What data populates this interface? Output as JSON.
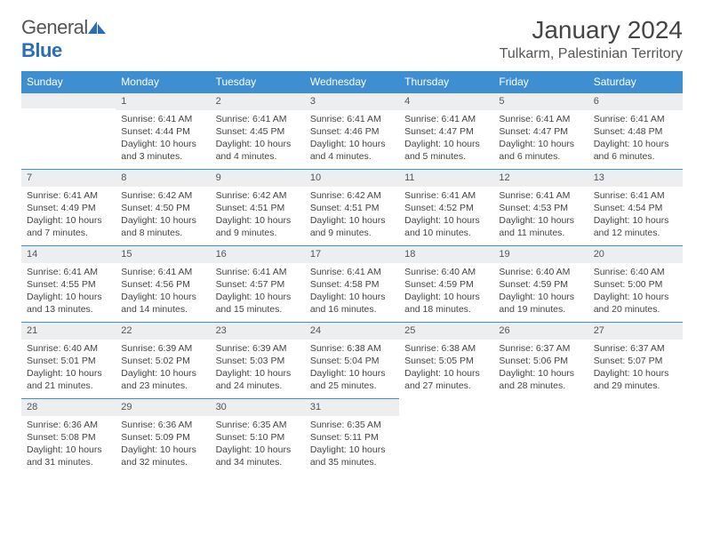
{
  "brand": {
    "part1": "General",
    "part2": "Blue"
  },
  "title": "January 2024",
  "location": "Tulkarm, Palestinian Territory",
  "colors": {
    "header_bg": "#3d8fd1",
    "header_text": "#ffffff",
    "daynum_bg": "#eceeef",
    "border": "#3d8fd1",
    "text": "#444444",
    "brand_blue": "#2a6db8"
  },
  "weekdays": [
    "Sunday",
    "Monday",
    "Tuesday",
    "Wednesday",
    "Thursday",
    "Friday",
    "Saturday"
  ],
  "start_offset": 1,
  "days": [
    {
      "n": "1",
      "sunrise": "6:41 AM",
      "sunset": "4:44 PM",
      "daylight": "10 hours and 3 minutes."
    },
    {
      "n": "2",
      "sunrise": "6:41 AM",
      "sunset": "4:45 PM",
      "daylight": "10 hours and 4 minutes."
    },
    {
      "n": "3",
      "sunrise": "6:41 AM",
      "sunset": "4:46 PM",
      "daylight": "10 hours and 4 minutes."
    },
    {
      "n": "4",
      "sunrise": "6:41 AM",
      "sunset": "4:47 PM",
      "daylight": "10 hours and 5 minutes."
    },
    {
      "n": "5",
      "sunrise": "6:41 AM",
      "sunset": "4:47 PM",
      "daylight": "10 hours and 6 minutes."
    },
    {
      "n": "6",
      "sunrise": "6:41 AM",
      "sunset": "4:48 PM",
      "daylight": "10 hours and 6 minutes."
    },
    {
      "n": "7",
      "sunrise": "6:41 AM",
      "sunset": "4:49 PM",
      "daylight": "10 hours and 7 minutes."
    },
    {
      "n": "8",
      "sunrise": "6:42 AM",
      "sunset": "4:50 PM",
      "daylight": "10 hours and 8 minutes."
    },
    {
      "n": "9",
      "sunrise": "6:42 AM",
      "sunset": "4:51 PM",
      "daylight": "10 hours and 9 minutes."
    },
    {
      "n": "10",
      "sunrise": "6:42 AM",
      "sunset": "4:51 PM",
      "daylight": "10 hours and 9 minutes."
    },
    {
      "n": "11",
      "sunrise": "6:41 AM",
      "sunset": "4:52 PM",
      "daylight": "10 hours and 10 minutes."
    },
    {
      "n": "12",
      "sunrise": "6:41 AM",
      "sunset": "4:53 PM",
      "daylight": "10 hours and 11 minutes."
    },
    {
      "n": "13",
      "sunrise": "6:41 AM",
      "sunset": "4:54 PM",
      "daylight": "10 hours and 12 minutes."
    },
    {
      "n": "14",
      "sunrise": "6:41 AM",
      "sunset": "4:55 PM",
      "daylight": "10 hours and 13 minutes."
    },
    {
      "n": "15",
      "sunrise": "6:41 AM",
      "sunset": "4:56 PM",
      "daylight": "10 hours and 14 minutes."
    },
    {
      "n": "16",
      "sunrise": "6:41 AM",
      "sunset": "4:57 PM",
      "daylight": "10 hours and 15 minutes."
    },
    {
      "n": "17",
      "sunrise": "6:41 AM",
      "sunset": "4:58 PM",
      "daylight": "10 hours and 16 minutes."
    },
    {
      "n": "18",
      "sunrise": "6:40 AM",
      "sunset": "4:59 PM",
      "daylight": "10 hours and 18 minutes."
    },
    {
      "n": "19",
      "sunrise": "6:40 AM",
      "sunset": "4:59 PM",
      "daylight": "10 hours and 19 minutes."
    },
    {
      "n": "20",
      "sunrise": "6:40 AM",
      "sunset": "5:00 PM",
      "daylight": "10 hours and 20 minutes."
    },
    {
      "n": "21",
      "sunrise": "6:40 AM",
      "sunset": "5:01 PM",
      "daylight": "10 hours and 21 minutes."
    },
    {
      "n": "22",
      "sunrise": "6:39 AM",
      "sunset": "5:02 PM",
      "daylight": "10 hours and 23 minutes."
    },
    {
      "n": "23",
      "sunrise": "6:39 AM",
      "sunset": "5:03 PM",
      "daylight": "10 hours and 24 minutes."
    },
    {
      "n": "24",
      "sunrise": "6:38 AM",
      "sunset": "5:04 PM",
      "daylight": "10 hours and 25 minutes."
    },
    {
      "n": "25",
      "sunrise": "6:38 AM",
      "sunset": "5:05 PM",
      "daylight": "10 hours and 27 minutes."
    },
    {
      "n": "26",
      "sunrise": "6:37 AM",
      "sunset": "5:06 PM",
      "daylight": "10 hours and 28 minutes."
    },
    {
      "n": "27",
      "sunrise": "6:37 AM",
      "sunset": "5:07 PM",
      "daylight": "10 hours and 29 minutes."
    },
    {
      "n": "28",
      "sunrise": "6:36 AM",
      "sunset": "5:08 PM",
      "daylight": "10 hours and 31 minutes."
    },
    {
      "n": "29",
      "sunrise": "6:36 AM",
      "sunset": "5:09 PM",
      "daylight": "10 hours and 32 minutes."
    },
    {
      "n": "30",
      "sunrise": "6:35 AM",
      "sunset": "5:10 PM",
      "daylight": "10 hours and 34 minutes."
    },
    {
      "n": "31",
      "sunrise": "6:35 AM",
      "sunset": "5:11 PM",
      "daylight": "10 hours and 35 minutes."
    }
  ],
  "labels": {
    "sunrise": "Sunrise: ",
    "sunset": "Sunset: ",
    "daylight": "Daylight: "
  }
}
